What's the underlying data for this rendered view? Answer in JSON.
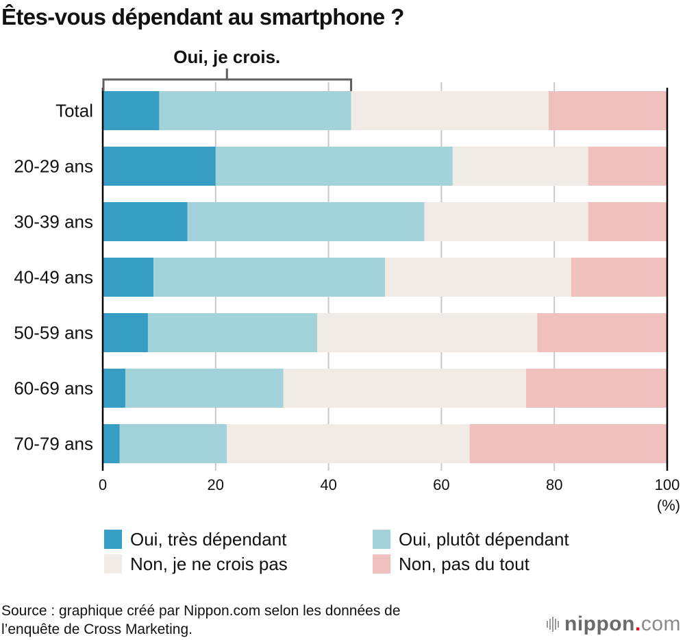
{
  "chart_data": {
    "type": "bar",
    "orientation": "horizontal",
    "stacked": true,
    "title": "Êtes-vous dépendant au smartphone ?",
    "xlabel": "",
    "ylabel": "",
    "unit_label": "(%)",
    "xlim": [
      0,
      100
    ],
    "xticks": [
      0,
      20,
      40,
      60,
      80,
      100
    ],
    "xtick_labels": [
      "0",
      "20",
      "40",
      "60",
      "80",
      "100"
    ],
    "grid": true,
    "categories": [
      "Total",
      "20-29 ans",
      "30-39 ans",
      "40-49 ans",
      "50-59 ans",
      "60-69 ans",
      "70-79 ans"
    ],
    "series": [
      {
        "name": "Oui, très dépendant",
        "color": "#369dc3",
        "values": [
          10,
          20,
          15,
          9,
          8,
          4,
          3
        ]
      },
      {
        "name": "Oui, plutôt dépendant",
        "color": "#a2d3da",
        "values": [
          34,
          42,
          42,
          41,
          30,
          28,
          19
        ]
      },
      {
        "name": "Non, je ne crois pas",
        "color": "#f0ebe4",
        "values": [
          35,
          24,
          29,
          33,
          39,
          43,
          43
        ]
      },
      {
        "name": "Non, pas du tout",
        "color": "#f0c0bf",
        "values": [
          21,
          14,
          14,
          17,
          23,
          25,
          35
        ]
      }
    ],
    "annotation": {
      "text": "Oui, je crois.",
      "type": "bracket",
      "category": "Total",
      "from": 0,
      "to": 44
    },
    "legend": {
      "placement": "bottom",
      "columns": 2
    }
  },
  "source": {
    "line1": "Source : graphique créé par Nippon.com selon les données de",
    "line2": "l’enquête de Cross Marketing."
  },
  "logo": {
    "name": "nippon",
    "dot": ".",
    "suffix": "com"
  }
}
